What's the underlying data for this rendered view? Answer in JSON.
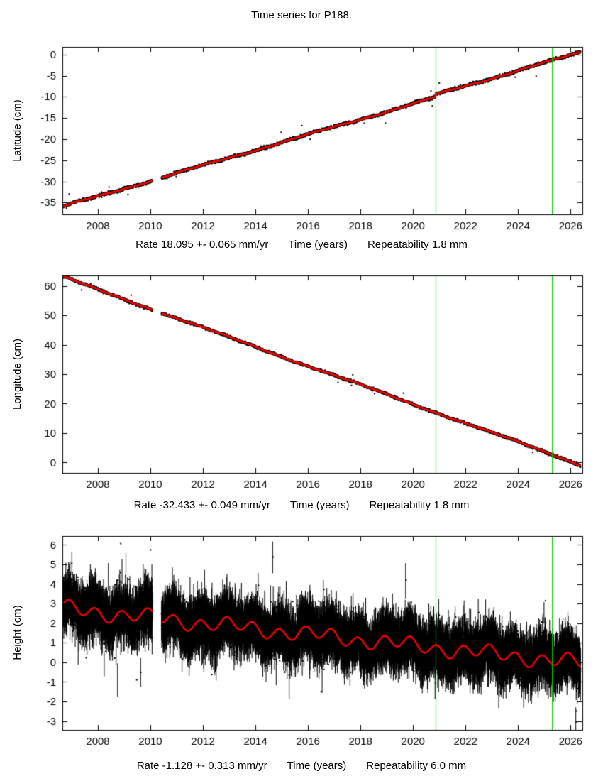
{
  "title": "Time series for P188.",
  "colors": {
    "points": "#000000",
    "model_line": "#ee0000",
    "event_line": "#00cc00",
    "axis": "#000000",
    "background": "#ffffff"
  },
  "x_axis": {
    "label": "Time (years)",
    "range": [
      2006.65,
      2026.45
    ],
    "ticks": [
      2008,
      2010,
      2012,
      2014,
      2016,
      2018,
      2020,
      2022,
      2024,
      2026
    ],
    "event_lines": [
      2020.85,
      2025.3
    ]
  },
  "chart_data": [
    {
      "type": "scatter",
      "name": "latitude",
      "ylabel": "Latitude (cm)",
      "caption": {
        "rate": "Rate 18.095 +- 0.065 mm/yr",
        "repeatability": "Repeatability 1.8 mm"
      },
      "ylim": [
        -37.8,
        1.8
      ],
      "yticks": [
        0,
        -5,
        -10,
        -15,
        -20,
        -25,
        -30,
        -35
      ],
      "series_model": {
        "x_start": 2006.68,
        "x_end": 2026.38,
        "y_start": -35.9,
        "y_end": -0.05,
        "offsets": [
          {
            "x": 2020.85,
            "dy": 0.6
          }
        ],
        "wiggles": [
          {
            "amp": 0.15,
            "period": 4.5,
            "phase": 1.2
          },
          {
            "amp": 0.07,
            "period": 1.0,
            "phase": 0.3
          }
        ]
      },
      "noise_sigma": 0.17,
      "error_bar": 0,
      "outlier_prob": 0.002,
      "gaps": [
        [
          2010.08,
          2010.42
        ]
      ],
      "sample_interval_days": 1,
      "seed": 11
    },
    {
      "type": "scatter",
      "name": "longitude",
      "ylabel": "Longitude (cm)",
      "caption": {
        "rate": "Rate -32.433 +- 0.049 mm/yr",
        "repeatability": "Repeatability 1.8 mm"
      },
      "ylim": [
        -3.5,
        63.5
      ],
      "yticks": [
        60,
        50,
        40,
        30,
        20,
        10,
        0
      ],
      "series_model": {
        "x_start": 2006.68,
        "x_end": 2026.38,
        "y_start": 63.0,
        "y_end": -0.8,
        "offsets": [],
        "wiggles": [
          {
            "amp": 0.22,
            "period": 5.5,
            "phase": 2.0
          },
          {
            "amp": 0.1,
            "period": 1.0,
            "phase": 2.6
          }
        ]
      },
      "noise_sigma": 0.22,
      "error_bar": 0,
      "outlier_prob": 0.002,
      "gaps": [
        [
          2010.08,
          2010.42
        ]
      ],
      "sample_interval_days": 1,
      "seed": 22
    },
    {
      "type": "scatter",
      "name": "height",
      "ylabel": "Height (cm)",
      "caption": {
        "rate": "Rate -1.128 +- 0.313 mm/yr",
        "repeatability": "Repeatability 6.0 mm"
      },
      "ylim": [
        -3.45,
        6.45
      ],
      "yticks": [
        6,
        5,
        4,
        3,
        2,
        1,
        0,
        -1,
        -2,
        -3
      ],
      "series_model": {
        "x_start": 2006.68,
        "x_end": 2026.38,
        "y_start": 2.75,
        "y_end": -0.05,
        "offsets": [],
        "wiggles": [
          {
            "amp": 0.3,
            "period": 1.0,
            "phase": 2.2
          },
          {
            "amp": 0.18,
            "period": 3.2,
            "phase": 0.8
          }
        ]
      },
      "noise_sigma": 0.55,
      "error_bar": 0.72,
      "outlier_prob": 0.004,
      "gaps": [
        [
          2010.08,
          2010.42
        ]
      ],
      "sample_interval_days": 1,
      "seed": 33
    }
  ]
}
